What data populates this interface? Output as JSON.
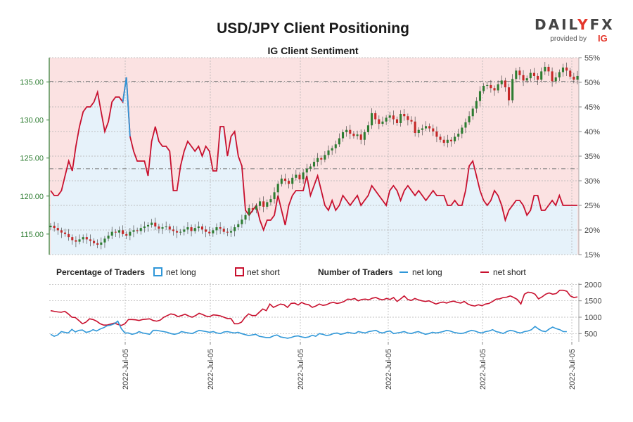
{
  "header": {
    "title": "USD/JPY Client Positioning",
    "subtitle": "IG Client Sentiment"
  },
  "brand": {
    "name_left": "DAIL",
    "name_y": "Y",
    "name_fx": "FX",
    "provided_by": "provided by",
    "ig": "IG"
  },
  "legend": {
    "pct_heading": "Percentage of Traders",
    "pct_long": "net long",
    "pct_short": "net short",
    "num_heading": "Number of Traders",
    "num_long": "net long",
    "num_short": "net short"
  },
  "colors": {
    "long": "#2f97d8",
    "short": "#c8102e",
    "long_fill": "#e6f2fa",
    "short_fill": "#fbe2e2",
    "candle_up": "#2e7d32",
    "candle_down": "#c62828",
    "axis_green": "#2e7d32"
  },
  "chart_data": [
    {
      "type": "candlestick+area",
      "title": "USD/JPY Client Positioning",
      "subtitle": "IG Client Sentiment",
      "price_axis": {
        "label_side": "left",
        "ticks": [
          "135.00",
          "130.00",
          "125.00",
          "120.00",
          "115.00"
        ],
        "tick_values": [
          135,
          130,
          125,
          120,
          115
        ],
        "range": [
          112.3,
          138.2
        ]
      },
      "sentiment_axis": {
        "label_side": "right",
        "ticks": [
          "55%",
          "50%",
          "45%",
          "40%",
          "35%",
          "30%",
          "25%",
          "20%",
          "15%"
        ],
        "tick_values": [
          55,
          50,
          45,
          40,
          35,
          30,
          25,
          20,
          15
        ],
        "range": [
          15,
          55
        ]
      },
      "reference_lines": [
        135.1,
        123.6
      ],
      "net_short_pct": [
        28,
        27,
        27,
        28,
        31,
        34,
        32,
        37,
        41,
        44,
        45,
        45,
        46,
        48,
        44,
        40,
        42,
        46,
        47,
        47,
        46,
        51,
        39,
        36,
        34,
        34,
        34,
        31,
        38,
        41,
        38,
        37,
        37,
        36,
        28,
        28,
        33,
        36,
        38,
        37,
        36,
        37,
        35,
        37,
        36,
        32,
        32,
        41,
        41,
        35,
        39,
        40,
        35,
        33,
        24,
        23,
        24,
        25,
        22,
        20,
        22,
        22,
        23,
        27,
        24,
        21,
        25,
        27,
        28,
        28,
        28,
        31,
        27,
        29,
        31,
        28,
        25,
        24,
        26,
        24,
        25,
        27,
        26,
        25,
        26,
        27,
        25,
        26,
        27,
        29,
        28,
        27,
        26,
        25,
        28,
        29,
        28,
        26,
        28,
        29,
        28,
        27,
        28,
        27,
        26,
        27,
        28,
        27,
        27,
        27,
        25,
        25,
        26,
        25,
        25,
        28,
        33,
        34,
        31,
        28,
        26,
        25,
        26,
        28,
        27,
        25,
        22,
        24,
        25,
        26,
        26,
        25,
        23,
        24,
        27,
        27,
        24,
        24,
        25,
        26,
        25,
        27,
        25,
        25,
        25,
        25,
        25
      ],
      "net_long_pct": [
        72,
        73,
        73,
        72,
        69,
        66,
        68,
        63,
        59,
        56,
        55,
        55,
        54,
        52,
        56,
        60,
        58,
        54,
        53,
        53,
        54,
        49,
        61,
        64,
        66,
        66,
        66,
        69,
        62,
        59,
        62,
        63,
        63,
        64,
        72,
        72,
        67,
        64,
        62,
        63,
        64,
        63,
        65,
        63,
        64,
        68,
        68,
        59,
        59,
        65,
        61,
        60,
        65,
        67,
        76,
        77,
        76,
        75,
        78,
        80,
        78,
        78,
        77,
        73,
        76,
        79,
        75,
        73,
        72,
        72,
        72,
        69,
        73,
        71,
        69,
        72,
        75,
        76,
        74,
        76,
        75,
        73,
        74,
        75,
        74,
        73,
        75,
        74,
        73,
        71,
        72,
        73,
        74,
        75,
        72,
        71,
        72,
        74,
        72,
        71,
        72,
        73,
        72,
        73,
        74,
        73,
        72,
        73,
        73,
        73,
        75,
        75,
        74,
        75,
        75,
        72,
        67,
        66,
        69,
        72,
        74,
        75,
        74,
        72,
        73,
        75,
        78,
        76,
        75,
        74,
        74,
        75,
        77,
        76,
        73,
        73,
        76,
        76,
        75,
        74,
        75,
        73,
        75,
        75,
        75,
        75,
        75
      ],
      "price_close": [
        116.1,
        115.8,
        115.5,
        115.2,
        115.0,
        114.6,
        114.2,
        114.0,
        114.3,
        114.6,
        114.3,
        114.1,
        113.8,
        113.6,
        113.9,
        114.4,
        114.8,
        115.3,
        115.2,
        115.5,
        115.0,
        114.8,
        115.3,
        115.5,
        115.4,
        115.8,
        116.0,
        116.2,
        116.5,
        116.0,
        115.7,
        115.9,
        116.0,
        115.6,
        115.4,
        115.2,
        115.3,
        115.6,
        115.9,
        115.4,
        115.8,
        116.0,
        115.6,
        115.3,
        115.1,
        115.5,
        115.9,
        115.7,
        115.3,
        115.2,
        115.4,
        115.9,
        116.3,
        116.9,
        117.5,
        118.4,
        118.2,
        118.7,
        119.3,
        118.6,
        119.2,
        119.6,
        120.5,
        121.6,
        122.3,
        122.0,
        121.6,
        122.4,
        122.8,
        122.2,
        123.1,
        123.6,
        123.9,
        124.5,
        125.0,
        124.8,
        125.4,
        126.0,
        126.3,
        126.8,
        127.6,
        128.4,
        128.7,
        128.2,
        127.9,
        128.1,
        127.4,
        128.4,
        129.3,
        130.9,
        130.1,
        129.5,
        129.8,
        130.3,
        130.6,
        130.1,
        129.6,
        130.8,
        130.5,
        130.0,
        129.8,
        128.3,
        128.7,
        128.9,
        129.2,
        128.9,
        128.5,
        127.8,
        127.4,
        127.0,
        127.4,
        127.2,
        127.8,
        128.2,
        129.0,
        129.7,
        130.5,
        131.5,
        132.5,
        133.8,
        134.5,
        134.6,
        134.2,
        133.9,
        134.7,
        135.2,
        134.3,
        132.6,
        135.4,
        136.5,
        135.9,
        135.2,
        135.5,
        136.2,
        135.8,
        135.3,
        136.4,
        137.0,
        136.4,
        135.1,
        135.6,
        136.3,
        136.9,
        136.5,
        135.7,
        135.3,
        135.8
      ]
    },
    {
      "type": "line",
      "title": "Number of Traders",
      "y_axis": {
        "ticks": [
          "2000",
          "1500",
          "1000",
          "500"
        ],
        "tick_values": [
          2000,
          1500,
          1000,
          500
        ],
        "range": [
          250,
          2050
        ]
      },
      "x_tick_labels": [
        "2022-Jul-05",
        "2022-Jul-05",
        "2022-Jul-05",
        "2022-Jul-05",
        "2022-Jul-05",
        "2022-Jul-05"
      ],
      "series": [
        {
          "name": "net short",
          "values": [
            1200,
            1180,
            1160,
            1150,
            1180,
            1100,
            1000,
            990,
            900,
            800,
            850,
            950,
            930,
            880,
            800,
            760,
            760,
            790,
            820,
            780,
            750,
            800,
            930,
            930,
            920,
            900,
            930,
            940,
            950,
            900,
            880,
            910,
            1000,
            1050,
            1100,
            1080,
            1020,
            1050,
            1090,
            1040,
            1000,
            1050,
            1120,
            1080,
            1030,
            1020,
            1070,
            1060,
            1040,
            1000,
            960,
            960,
            800,
            800,
            850,
            1000,
            1100,
            1050,
            1050,
            1150,
            1250,
            1200,
            1400,
            1300,
            1350,
            1400,
            1380,
            1300,
            1420,
            1430,
            1370,
            1450,
            1400,
            1380,
            1300,
            1340,
            1400,
            1360,
            1380,
            1430,
            1450,
            1420,
            1440,
            1480,
            1550,
            1540,
            1570,
            1500,
            1540,
            1550,
            1530,
            1580,
            1600,
            1550,
            1530,
            1570,
            1540,
            1600,
            1480,
            1560,
            1650,
            1540,
            1510,
            1570,
            1530,
            1500,
            1480,
            1500,
            1450,
            1400,
            1440,
            1460,
            1430,
            1470,
            1490,
            1450,
            1430,
            1480,
            1400,
            1360,
            1340,
            1380,
            1350,
            1400,
            1420,
            1480,
            1550,
            1560,
            1600,
            1610,
            1650,
            1600,
            1540,
            1400,
            1700,
            1760,
            1750,
            1700,
            1560,
            1620,
            1700,
            1740,
            1700,
            1720,
            1820,
            1820,
            1790,
            1650,
            1600,
            1620
          ]
        },
        {
          "name": "net long",
          "values": [
            480,
            420,
            460,
            560,
            540,
            520,
            630,
            550,
            600,
            610,
            540,
            560,
            620,
            580,
            640,
            680,
            740,
            760,
            800,
            880,
            650,
            520,
            520,
            480,
            500,
            560,
            520,
            500,
            480,
            600,
            600,
            580,
            560,
            540,
            500,
            480,
            500,
            560,
            540,
            520,
            500,
            550,
            600,
            580,
            560,
            540,
            560,
            520,
            500,
            550,
            560,
            540,
            520,
            540,
            500,
            470,
            440,
            460,
            480,
            420,
            400,
            380,
            380,
            430,
            460,
            400,
            380,
            360,
            380,
            420,
            430,
            400,
            380,
            400,
            450,
            420,
            500,
            480,
            440,
            460,
            500,
            520,
            480,
            500,
            540,
            520,
            500,
            560,
            540,
            520,
            560,
            580,
            600,
            540,
            520,
            560,
            580,
            500,
            520,
            540,
            560,
            520,
            500,
            540,
            560,
            520,
            480,
            500,
            540,
            520,
            540,
            560,
            600,
            580,
            540,
            520,
            500,
            520,
            560,
            600,
            580,
            540,
            520,
            560,
            580,
            620,
            560,
            540,
            500,
            560,
            600,
            580,
            540,
            520,
            560,
            580,
            620,
            720,
            640,
            580,
            560,
            640,
            700,
            650,
            620,
            560,
            560
          ]
        }
      ]
    }
  ]
}
